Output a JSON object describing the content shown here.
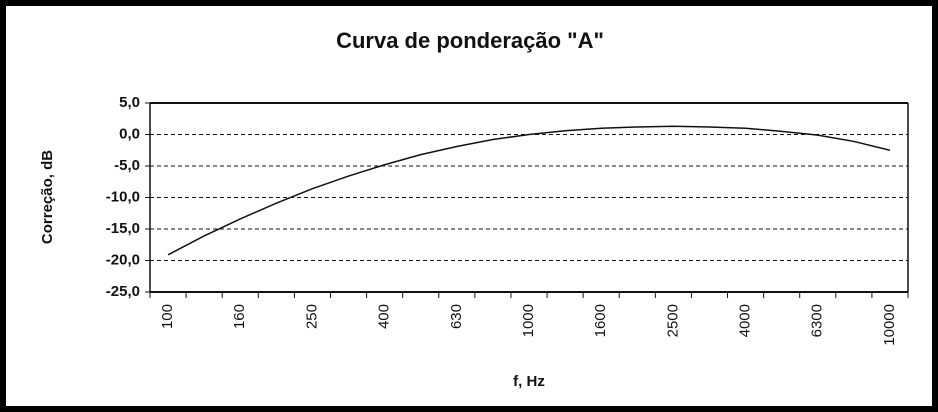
{
  "chart_data": {
    "type": "line",
    "title": "Curva de ponderação \"A\"",
    "y_label": "Correção, dB",
    "x_label": "f, Hz",
    "categories": [
      "100",
      null,
      "160",
      null,
      "250",
      null,
      "400",
      null,
      "630",
      null,
      "1000",
      null,
      "1600",
      null,
      "2500",
      null,
      "4000",
      null,
      "6300",
      null,
      "10000"
    ],
    "series": [
      {
        "name": null,
        "color": "#111111",
        "values": [
          -19.1,
          -16.1,
          -13.4,
          -10.9,
          -8.6,
          -6.6,
          -4.8,
          -3.2,
          -1.9,
          -0.8,
          0,
          0.6,
          1.0,
          1.2,
          1.3,
          1.2,
          1.0,
          0.5,
          -0.1,
          -1.1,
          -2.5
        ]
      }
    ],
    "ylim": [
      -25,
      5
    ],
    "yticks": [
      {
        "value": 5,
        "label": "5,0"
      },
      {
        "value": 0,
        "label": "0,0"
      },
      {
        "value": -5,
        "label": "-5,0"
      },
      {
        "value": -10,
        "label": "-10,0"
      },
      {
        "value": -15,
        "label": "-15,0"
      },
      {
        "value": -20,
        "label": "-20,0"
      },
      {
        "value": -25,
        "label": "-25,0"
      }
    ],
    "grid": true
  }
}
